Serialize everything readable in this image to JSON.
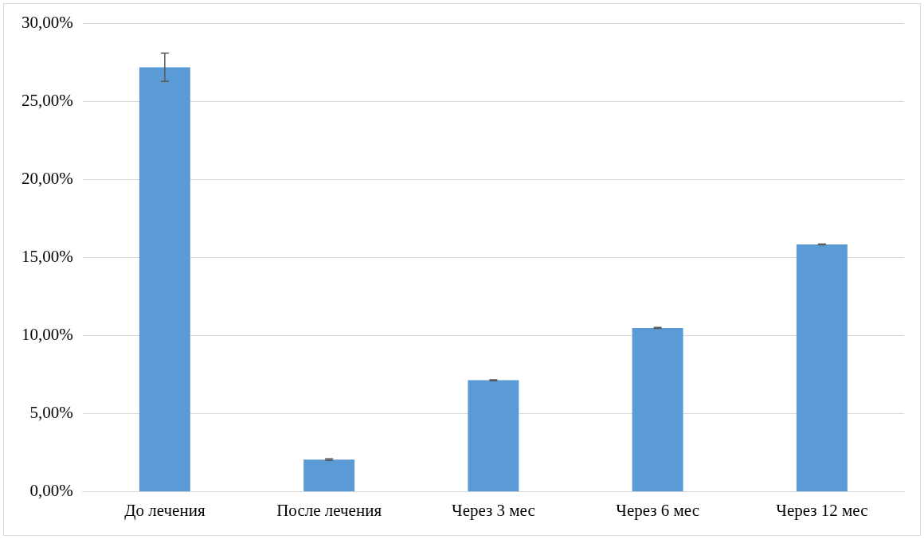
{
  "chart_data": {
    "type": "bar",
    "categories": [
      "До лечения",
      "После лечения",
      "Через 3 мес",
      "Через 6 мес",
      "Через 12 мес"
    ],
    "values": [
      27.2,
      2.07,
      7.15,
      10.5,
      15.85
    ],
    "errors": [
      0.9,
      0.05,
      0.03,
      0.03,
      0.03
    ],
    "color": "#5b9bd5",
    "ylim": [
      0,
      30
    ],
    "yticks": [
      {
        "value": 0,
        "label": "0,00%"
      },
      {
        "value": 5,
        "label": "5,00%"
      },
      {
        "value": 10,
        "label": "10,00%"
      },
      {
        "value": 15,
        "label": "15,00%"
      },
      {
        "value": 20,
        "label": "20,00%"
      },
      {
        "value": 25,
        "label": "25,00%"
      },
      {
        "value": 30,
        "label": "30,00%"
      }
    ],
    "grid": "y"
  }
}
